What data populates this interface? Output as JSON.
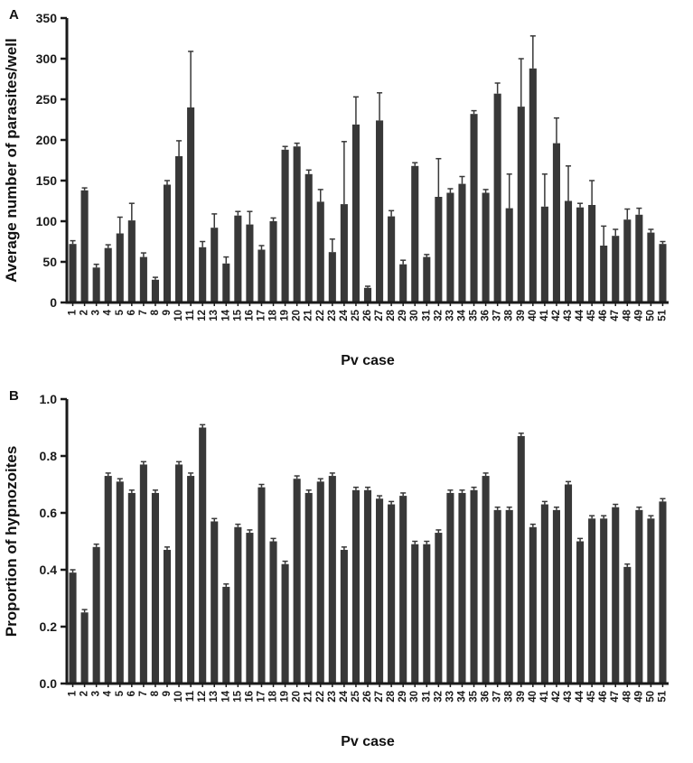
{
  "figure": {
    "panel_a_label": "A",
    "panel_b_label": "B",
    "bar_color": "#383838",
    "axis_color": "#1a1a1a"
  },
  "chart_data": [
    {
      "type": "bar",
      "panel": "A",
      "title": "",
      "xlabel": "Pv case",
      "ylabel": "Average number of parasites/well",
      "ylim": [
        0,
        350
      ],
      "yticks": [
        0,
        50,
        100,
        150,
        200,
        250,
        300,
        350
      ],
      "ytick_labels": [
        "0",
        "50",
        "100",
        "150",
        "200",
        "250",
        "300",
        "350"
      ],
      "grid": false,
      "legend": "none",
      "error_bars": "upper",
      "bar_color": "#383838",
      "categories": [
        "1",
        "2",
        "3",
        "4",
        "5",
        "6",
        "7",
        "8",
        "9",
        "10",
        "11",
        "12",
        "13",
        "14",
        "15",
        "16",
        "17",
        "18",
        "19",
        "20",
        "21",
        "22",
        "23",
        "24",
        "25",
        "26",
        "27",
        "28",
        "29",
        "30",
        "31",
        "32",
        "33",
        "34",
        "35",
        "36",
        "37",
        "38",
        "39",
        "40",
        "41",
        "42",
        "43",
        "44",
        "45",
        "46",
        "47",
        "48",
        "49",
        "50",
        "51"
      ],
      "values": [
        72,
        138,
        43,
        67,
        85,
        101,
        56,
        28,
        145,
        180,
        240,
        68,
        92,
        48,
        107,
        96,
        65,
        100,
        188,
        192,
        158,
        124,
        62,
        121,
        219,
        18,
        224,
        106,
        47,
        168,
        56,
        130,
        135,
        146,
        232,
        135,
        257,
        116,
        241,
        288,
        118,
        196,
        125,
        117,
        120,
        70,
        82,
        102,
        108,
        86,
        72
      ],
      "errors": [
        4,
        3,
        4,
        4,
        20,
        21,
        5,
        3,
        5,
        19,
        69,
        7,
        17,
        8,
        5,
        16,
        5,
        4,
        4,
        4,
        5,
        15,
        16,
        77,
        34,
        2,
        34,
        7,
        5,
        4,
        3,
        47,
        5,
        9,
        4,
        4,
        13,
        42,
        59,
        40,
        40,
        31,
        43,
        5,
        30,
        24,
        8,
        13,
        8,
        4,
        3
      ]
    },
    {
      "type": "bar",
      "panel": "B",
      "title": "",
      "xlabel": "Pv case",
      "ylabel": "Proportion of hypnozoites",
      "ylim": [
        0,
        1.0
      ],
      "yticks": [
        0.0,
        0.2,
        0.4,
        0.6,
        0.8,
        1.0
      ],
      "ytick_labels": [
        "0.0",
        "0.2",
        "0.4",
        "0.6",
        "0.8",
        "1.0"
      ],
      "grid": false,
      "legend": "none",
      "error_bars": "upper",
      "bar_color": "#383838",
      "categories": [
        "1",
        "2",
        "3",
        "4",
        "5",
        "6",
        "7",
        "8",
        "9",
        "10",
        "11",
        "12",
        "13",
        "14",
        "15",
        "16",
        "17",
        "18",
        "19",
        "20",
        "21",
        "22",
        "23",
        "24",
        "25",
        "26",
        "27",
        "28",
        "29",
        "30",
        "31",
        "32",
        "33",
        "34",
        "35",
        "36",
        "37",
        "38",
        "39",
        "40",
        "41",
        "42",
        "43",
        "44",
        "45",
        "46",
        "47",
        "48",
        "49",
        "50",
        "51"
      ],
      "values": [
        0.39,
        0.25,
        0.48,
        0.73,
        0.71,
        0.67,
        0.77,
        0.67,
        0.47,
        0.77,
        0.73,
        0.9,
        0.57,
        0.34,
        0.55,
        0.53,
        0.69,
        0.5,
        0.42,
        0.72,
        0.67,
        0.71,
        0.73,
        0.47,
        0.68,
        0.68,
        0.65,
        0.63,
        0.66,
        0.49,
        0.49,
        0.53,
        0.67,
        0.67,
        0.68,
        0.73,
        0.61,
        0.61,
        0.87,
        0.55,
        0.63,
        0.61,
        0.7,
        0.5,
        0.58,
        0.58,
        0.62,
        0.41,
        0.61,
        0.58,
        0.64
      ],
      "errors": [
        0.01,
        0.01,
        0.01,
        0.01,
        0.01,
        0.01,
        0.01,
        0.01,
        0.01,
        0.01,
        0.01,
        0.01,
        0.01,
        0.01,
        0.01,
        0.01,
        0.01,
        0.01,
        0.01,
        0.01,
        0.01,
        0.01,
        0.01,
        0.01,
        0.01,
        0.01,
        0.01,
        0.01,
        0.01,
        0.01,
        0.01,
        0.01,
        0.01,
        0.01,
        0.01,
        0.01,
        0.01,
        0.01,
        0.01,
        0.01,
        0.01,
        0.01,
        0.01,
        0.01,
        0.01,
        0.01,
        0.01,
        0.01,
        0.01,
        0.01,
        0.01
      ]
    }
  ]
}
